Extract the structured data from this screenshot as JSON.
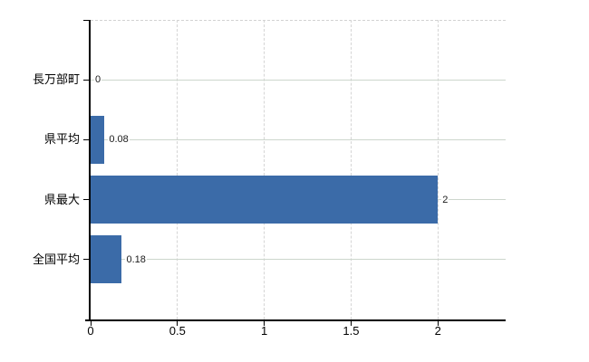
{
  "chart_data": {
    "type": "bar",
    "orientation": "horizontal",
    "title": "",
    "categories": [
      "長万部町",
      "県平均",
      "県最大",
      "全国平均"
    ],
    "values": [
      0,
      0.08,
      2,
      0.18
    ],
    "value_labels": [
      "0",
      "0.08",
      "2",
      "0.18"
    ],
    "x_ticks": [
      0,
      0.5,
      1,
      1.5,
      2
    ],
    "x_tick_labels": [
      "0",
      "0.5",
      "1",
      "1.5",
      "2"
    ],
    "xlim": [
      0,
      2.39
    ],
    "legend": "none",
    "grid": {
      "horizontal_lines": "solid",
      "vertical_lines": "dashed",
      "top_border": "dashed"
    },
    "colors": {
      "bar": "#3b6ba8",
      "axis": "#000000",
      "horizontal_gridline": "#cdd6cd",
      "vertical_gridline": "#d5d5d5",
      "top_border": "#d2d2d2",
      "value_label_text": "#1a1a1a",
      "tick_label_text": "#000000",
      "background": "#ffffff"
    }
  }
}
